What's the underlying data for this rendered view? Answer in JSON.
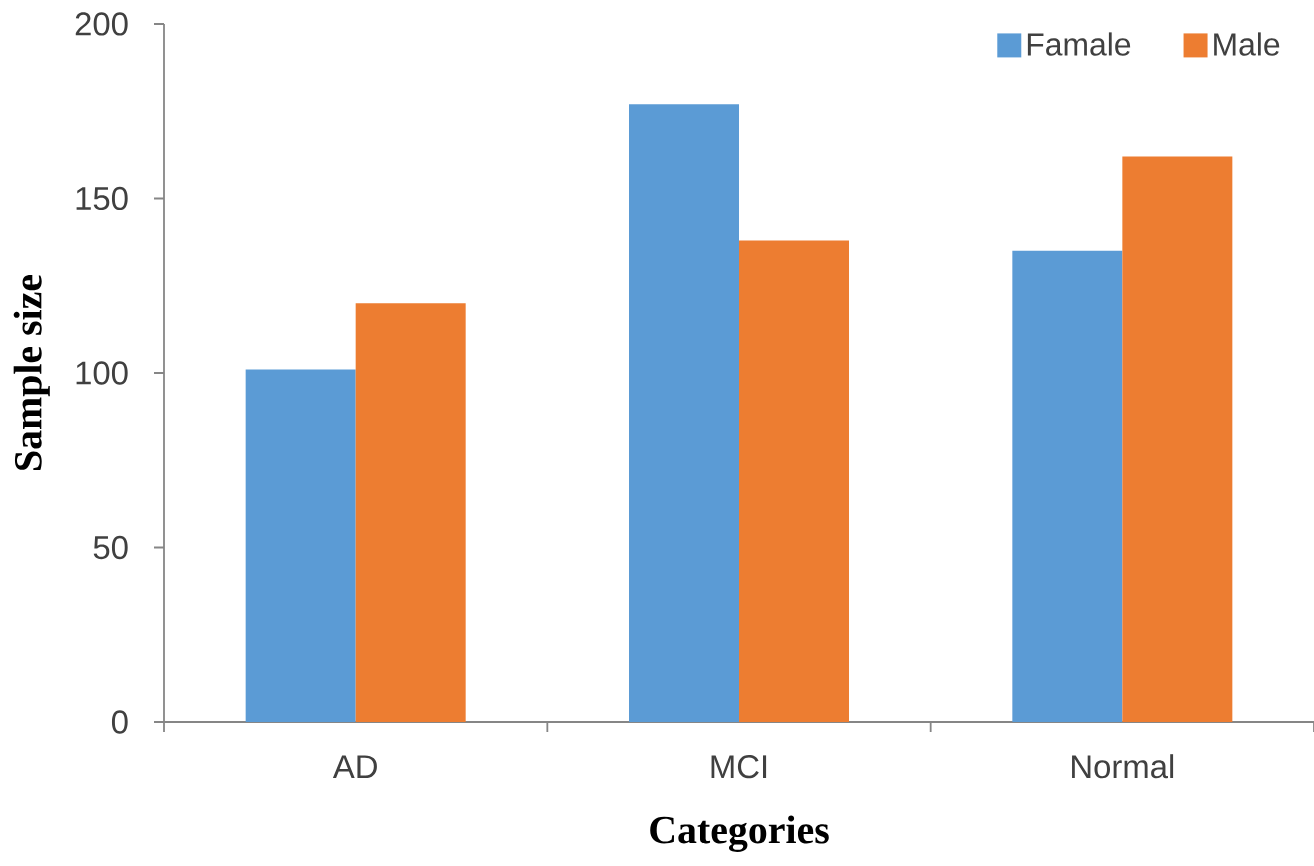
{
  "chart_data": {
    "type": "bar",
    "xlabel": "Categories",
    "ylabel": "Sample size",
    "categories": [
      "AD",
      "MCI",
      "Normal"
    ],
    "series": [
      {
        "name": "Famale",
        "color": "#5b9bd5",
        "values": [
          101,
          177,
          135
        ]
      },
      {
        "name": "Male",
        "color": "#ed7d31",
        "values": [
          120,
          138,
          162
        ]
      }
    ],
    "ylim": [
      0,
      200
    ],
    "yticks": [
      0,
      50,
      100,
      150,
      200
    ],
    "legend": "top right"
  }
}
